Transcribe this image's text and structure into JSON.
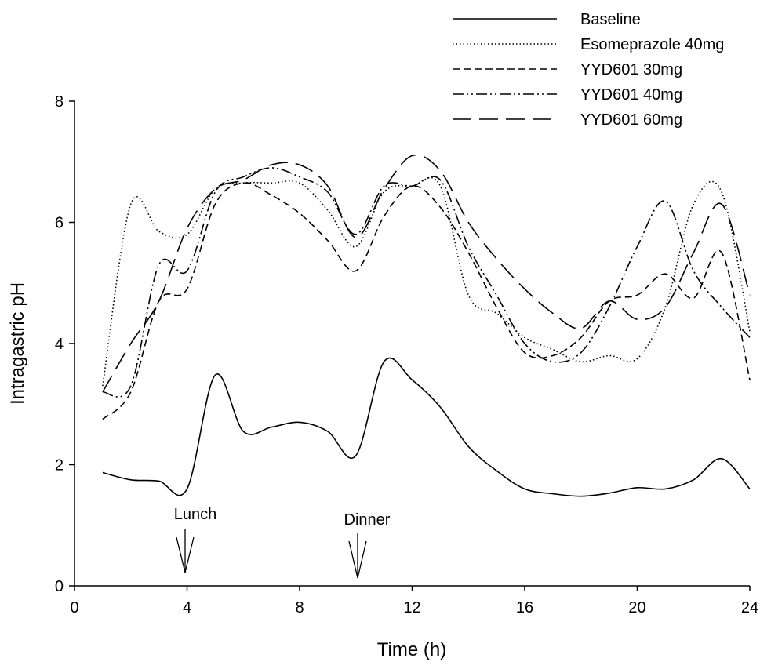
{
  "chart_data": {
    "type": "line",
    "xlabel": "Time (h)",
    "ylabel": "Intragastric pH",
    "x": [
      1,
      2,
      3,
      4,
      5,
      6,
      7,
      8,
      9,
      10,
      11,
      12,
      13,
      14,
      15,
      16,
      17,
      18,
      19,
      20,
      21,
      22,
      23,
      24
    ],
    "series": [
      {
        "name": "Baseline",
        "color": "#000000",
        "dash": "solid",
        "values": [
          1.87,
          1.75,
          1.73,
          1.6,
          3.48,
          2.55,
          2.62,
          2.7,
          2.55,
          2.15,
          3.7,
          3.4,
          2.95,
          2.3,
          1.9,
          1.6,
          1.52,
          1.48,
          1.53,
          1.62,
          1.6,
          1.75,
          2.1,
          1.6
        ]
      },
      {
        "name": "Esomeprazole 40mg",
        "color": "#000000",
        "dash": "dotted",
        "values": [
          3.3,
          6.3,
          5.85,
          5.8,
          6.55,
          6.65,
          6.65,
          6.65,
          6.2,
          5.6,
          6.5,
          6.6,
          6.6,
          4.8,
          4.5,
          4.1,
          3.9,
          3.7,
          3.8,
          3.75,
          4.6,
          6.3,
          6.5,
          4.2
        ]
      },
      {
        "name": "YYD601 30mg",
        "color": "#000000",
        "dash": "dashed",
        "values": [
          2.75,
          3.2,
          4.7,
          4.9,
          6.3,
          6.65,
          6.45,
          6.15,
          5.7,
          5.2,
          6.1,
          6.6,
          6.25,
          5.5,
          4.6,
          3.85,
          3.8,
          4.1,
          4.7,
          4.8,
          5.15,
          4.75,
          5.5,
          3.4
        ]
      },
      {
        "name": "YYD601 40mg",
        "color": "#000000",
        "dash": "dashdotdot",
        "values": [
          3.2,
          3.3,
          5.3,
          5.2,
          6.5,
          6.75,
          6.9,
          6.75,
          6.5,
          5.8,
          6.6,
          6.6,
          6.7,
          5.6,
          4.8,
          4.0,
          3.7,
          3.85,
          4.6,
          5.6,
          6.35,
          5.2,
          4.6,
          4.1
        ]
      },
      {
        "name": "YYD601 60mg",
        "color": "#000000",
        "dash": "longdash",
        "values": [
          3.2,
          4.0,
          4.7,
          5.9,
          6.55,
          6.7,
          6.95,
          6.95,
          6.6,
          5.75,
          6.55,
          7.1,
          6.85,
          6.0,
          5.4,
          4.9,
          4.5,
          4.25,
          4.7,
          4.4,
          4.6,
          5.5,
          6.3,
          4.8
        ]
      }
    ],
    "annotations": [
      "Lunch",
      "Dinner"
    ],
    "xlim": [
      0,
      24
    ],
    "xticks": [
      0,
      4,
      8,
      12,
      16,
      20,
      24
    ],
    "ylim": [
      0,
      8
    ],
    "yticks": [
      0,
      2,
      4,
      6,
      8
    ],
    "grid": false,
    "legend": "top-right"
  }
}
